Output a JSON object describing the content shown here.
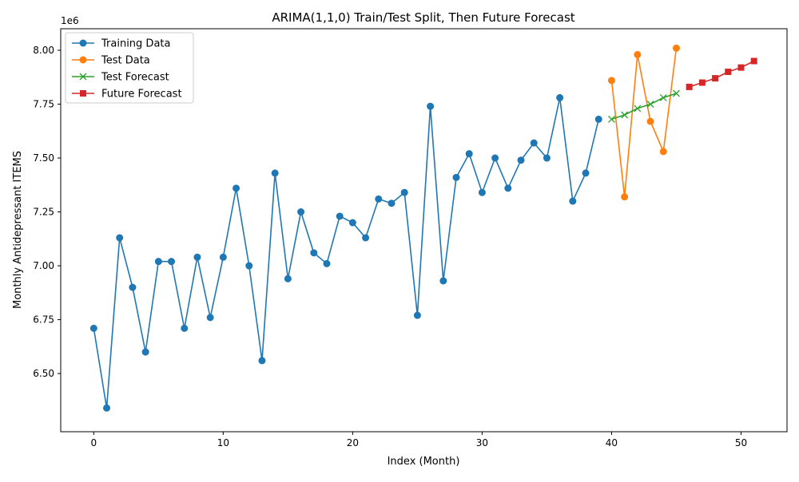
{
  "chart_data": {
    "type": "line",
    "title": "ARIMA(1,1,0) Train/Test Split, Then Future Forecast",
    "xlabel": "Index (Month)",
    "ylabel": "Monthly Antidepressant ITEMS",
    "y_offset_label": "1e6",
    "xlim": [
      -2.55,
      53.55
    ],
    "ylim": [
      6.23,
      8.1
    ],
    "x_ticks": [
      0,
      10,
      20,
      30,
      40,
      50
    ],
    "x_tick_labels": [
      "0",
      "10",
      "20",
      "30",
      "40",
      "50"
    ],
    "y_ticks": [
      6.5,
      6.75,
      7.0,
      7.25,
      7.5,
      7.75,
      8.0
    ],
    "y_tick_labels": [
      "6.50",
      "6.75",
      "7.00",
      "7.25",
      "7.50",
      "7.75",
      "8.00"
    ],
    "grid": false,
    "legend_position": "upper-left",
    "series": [
      {
        "name": "Training Data",
        "color": "#1f77b4",
        "marker": "circle",
        "x": [
          0,
          1,
          2,
          3,
          4,
          5,
          6,
          7,
          8,
          9,
          10,
          11,
          12,
          13,
          14,
          15,
          16,
          17,
          18,
          19,
          20,
          21,
          22,
          23,
          24,
          25,
          26,
          27,
          28,
          29,
          30,
          31,
          32,
          33,
          34,
          35,
          36,
          37,
          38,
          39
        ],
        "values": [
          6.71,
          6.34,
          7.13,
          6.9,
          6.6,
          7.02,
          7.02,
          6.71,
          7.04,
          6.76,
          7.04,
          7.36,
          7.0,
          6.56,
          7.43,
          6.94,
          7.25,
          7.06,
          7.01,
          7.23,
          7.2,
          7.13,
          7.31,
          7.29,
          7.34,
          6.77,
          7.74,
          6.93,
          7.41,
          7.52,
          7.34,
          7.5,
          7.36,
          7.49,
          7.57,
          7.5,
          7.78,
          7.3,
          7.43,
          7.68
        ]
      },
      {
        "name": "Test Data",
        "color": "#ff7f0e",
        "marker": "circle",
        "x": [
          40,
          41,
          42,
          43,
          44,
          45
        ],
        "values": [
          7.86,
          7.32,
          7.98,
          7.67,
          7.53,
          8.01
        ]
      },
      {
        "name": "Test Forecast",
        "color": "#2ca02c",
        "marker": "x",
        "x": [
          40,
          41,
          42,
          43,
          44,
          45
        ],
        "values": [
          7.68,
          7.7,
          7.73,
          7.75,
          7.78,
          7.8
        ]
      },
      {
        "name": "Future Forecast",
        "color": "#d62728",
        "marker": "square",
        "x": [
          46,
          47,
          48,
          49,
          50,
          51
        ],
        "values": [
          7.83,
          7.85,
          7.87,
          7.9,
          7.92,
          7.95
        ]
      }
    ]
  }
}
